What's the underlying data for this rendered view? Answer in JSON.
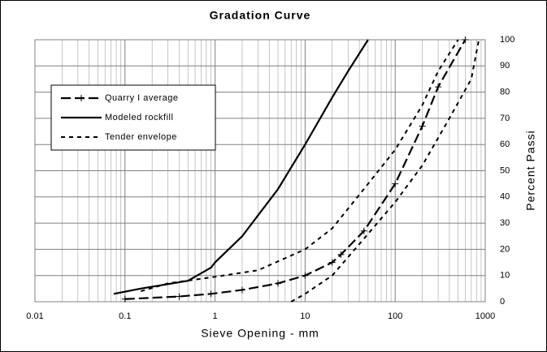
{
  "chart_data": {
    "type": "line",
    "title": "Gradation Curve",
    "xlabel": "Sieve Opening - mm",
    "ylabel": "Percent Passi",
    "xscale": "log",
    "xlim": [
      0.01,
      1000
    ],
    "xticks": [
      0.01,
      0.1,
      1,
      10,
      100,
      1000
    ],
    "ylim": [
      0,
      100
    ],
    "yticks": [
      0,
      10,
      20,
      30,
      40,
      50,
      60,
      70,
      80,
      90,
      100
    ],
    "grid": true,
    "legend": "upper left",
    "series": [
      {
        "name": "Quarry I average",
        "color": "#000000",
        "line_style": "long-dash",
        "marker": "+",
        "x": [
          0.1,
          0.4,
          0.9,
          2,
          5,
          10,
          20,
          25,
          45,
          100,
          200,
          300,
          600
        ],
        "values": [
          1,
          2,
          3,
          4.5,
          7,
          10,
          15,
          18,
          27,
          45,
          67,
          82,
          100
        ]
      },
      {
        "name": "Modeled rockfill",
        "color": "#000000",
        "line_style": "solid",
        "x": [
          0.075,
          0.15,
          0.5,
          0.9,
          1,
          2,
          5,
          10,
          20,
          30,
          50
        ],
        "values": [
          3,
          5,
          8,
          13,
          15,
          25,
          43,
          60,
          78,
          88,
          100
        ]
      },
      {
        "name": "Tender envelope",
        "color": "#000000",
        "line_style": "short-dash",
        "x": [
          0.15,
          0.3,
          1,
          3,
          10,
          20,
          50,
          100,
          200,
          300,
          500
        ],
        "values": [
          4,
          7,
          9.5,
          12,
          20,
          28,
          45,
          58,
          75,
          88,
          100
        ]
      },
      {
        "color": "#000000",
        "line_style": "short-dash",
        "x": [
          7,
          10,
          20,
          40,
          100,
          200,
          400,
          700,
          850
        ],
        "values": [
          0,
          3,
          10,
          22,
          38,
          52,
          70,
          85,
          100
        ]
      }
    ]
  }
}
